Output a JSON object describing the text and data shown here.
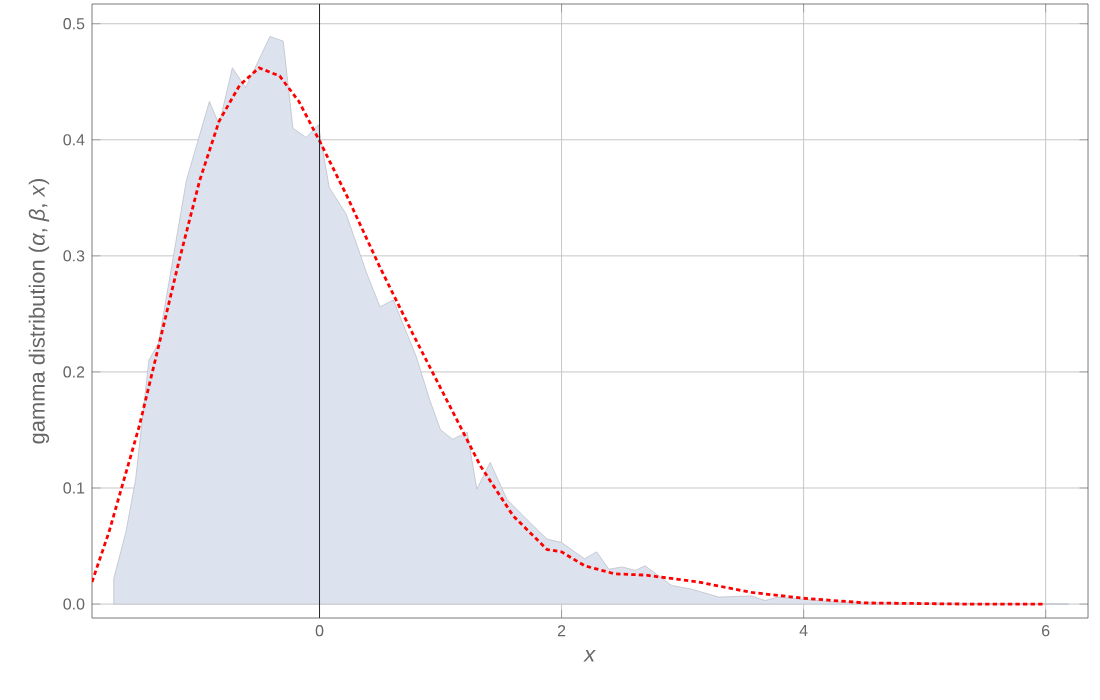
{
  "chart_data": {
    "type": "area",
    "xlabel": "*x*",
    "ylabel": "gamma distribution (*α*, *β*, *x*)",
    "xlim": [
      -1.88,
      6.35
    ],
    "ylim": [
      -0.012,
      0.517
    ],
    "xticks": [
      0,
      2,
      4,
      6
    ],
    "yticks": [
      {
        "value": 0,
        "label": "0.0"
      },
      {
        "value": 0.1,
        "label": "0.1"
      },
      {
        "value": 0.2,
        "label": "0.2"
      },
      {
        "value": 0.3,
        "label": "0.3"
      },
      {
        "value": 0.4,
        "label": "0.4"
      },
      {
        "value": 0.5,
        "label": "0.5"
      }
    ],
    "grid": true,
    "series": [
      {
        "color": "#dde3ee",
        "x": [
          -1.7,
          -1.7,
          -1.6,
          -1.52,
          -1.41,
          -1.33,
          -1.1,
          -0.91,
          -0.83,
          -0.72,
          -0.61,
          -0.41,
          -0.3,
          -0.22,
          -0.11,
          -0.01,
          0.08,
          0.22,
          0.39,
          0.5,
          0.61,
          0.8,
          0.91,
          1.0,
          1.1,
          1.22,
          1.3,
          1.41,
          1.55,
          1.77,
          1.88,
          2.0,
          2.19,
          2.29,
          2.39,
          2.5,
          2.61,
          2.69,
          2.91,
          3.07,
          3.3,
          3.57,
          3.68,
          3.79,
          4.23,
          4.78,
          6.19
        ],
        "values": [
          0,
          0.022,
          0.062,
          0.107,
          0.21,
          0.225,
          0.365,
          0.433,
          0.413,
          0.462,
          0.445,
          0.489,
          0.485,
          0.41,
          0.402,
          0.413,
          0.359,
          0.336,
          0.285,
          0.256,
          0.262,
          0.213,
          0.176,
          0.15,
          0.142,
          0.148,
          0.099,
          0.122,
          0.09,
          0.067,
          0.056,
          0.053,
          0.039,
          0.045,
          0.03,
          0.032,
          0.029,
          0.033,
          0.016,
          0.013,
          0.006,
          0.007,
          0.003,
          0.006,
          0.002,
          0.001,
          0
        ]
      },
      {
        "type": "line",
        "color": "#ff0000",
        "line_style": "dashed",
        "x": [
          -1.88,
          -1.74,
          -1.49,
          -1.33,
          -1.16,
          -0.99,
          -0.83,
          -0.66,
          -0.5,
          -0.33,
          -0.17,
          0,
          0.22,
          0.5,
          0.77,
          1.05,
          1.33,
          1.6,
          1.88,
          2.0,
          2.19,
          2.44,
          2.69,
          3.13,
          3.57,
          4.0,
          4.51,
          5.33,
          6.0
        ],
        "values": [
          0.019,
          0.062,
          0.153,
          0.222,
          0.296,
          0.365,
          0.416,
          0.447,
          0.462,
          0.455,
          0.433,
          0.399,
          0.353,
          0.29,
          0.233,
          0.176,
          0.119,
          0.076,
          0.047,
          0.045,
          0.033,
          0.026,
          0.025,
          0.019,
          0.01,
          0.005,
          0.001,
          0,
          0
        ]
      }
    ]
  }
}
